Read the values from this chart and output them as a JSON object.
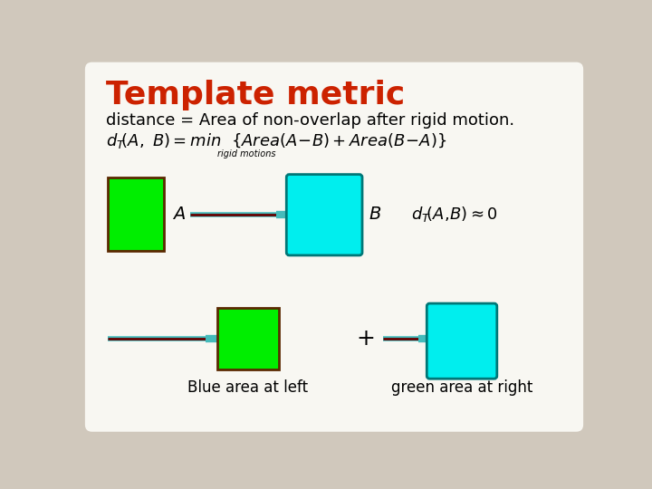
{
  "bg_outer": "#d0c8bc",
  "bg_inner": "#f8f7f2",
  "title": "Template metric",
  "title_color": "#cc2200",
  "line1": "distance = Area of non-overlap after rigid motion.",
  "line2_sub": "rigid motions",
  "green_color": "#00ee00",
  "cyan_color": "#00eeee",
  "dark_border": "#5a2800",
  "cyan_border": "#007777",
  "label_A": "A",
  "label_B": "B",
  "label_blue_left": "Blue area at left",
  "label_plus": "+",
  "label_green_right": "green area at right",
  "needle_dark": "#660000",
  "needle_cyan": "#44bbbb"
}
